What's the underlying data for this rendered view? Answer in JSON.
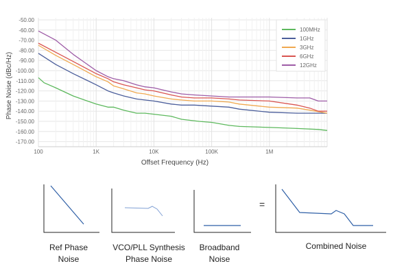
{
  "chart_data": {
    "type": "line",
    "title": "",
    "xlabel": "Offset Frequency (Hz)",
    "ylabel": "Phase Noise (dBc/Hz)",
    "x_scale": "log",
    "xlim": [
      100,
      10000000
    ],
    "ylim": [
      -175,
      -48
    ],
    "x_ticks": [
      100,
      1000,
      10000,
      100000,
      1000000
    ],
    "x_tick_labels": [
      "100",
      "1K",
      "10K",
      "100K",
      "1M"
    ],
    "y_ticks": [
      -50,
      -60,
      -70,
      -80,
      -90,
      -100,
      -110,
      -120,
      -130,
      -140,
      -150,
      -160,
      -170
    ],
    "y_tick_labels": [
      "-50.00",
      "-60.00",
      "-70.00",
      "-80.00",
      "-90.00",
      "-100.00",
      "-110.00",
      "-120.00",
      "-130.00",
      "-140.00",
      "-150.00",
      "-160.00",
      "-170.00"
    ],
    "grid": true,
    "legend_position": "top-right",
    "series": [
      {
        "name": "100MHz",
        "color": "#5cb85c",
        "x": [
          100,
          125,
          200,
          400,
          1000,
          1600,
          2000,
          3000,
          5000,
          7000,
          10000,
          20000,
          30000,
          60000,
          100000,
          200000,
          300000,
          1000000,
          3000000,
          7000000,
          10000000
        ],
        "y": [
          -107,
          -112,
          -117,
          -125,
          -133,
          -136,
          -136,
          -139,
          -142,
          -142,
          -143,
          -145,
          -148,
          -150,
          -151,
          -154,
          -155,
          -156,
          -157,
          -158,
          -159
        ]
      },
      {
        "name": "1GHz",
        "color": "#4a5d9a",
        "x": [
          100,
          200,
          400,
          1000,
          1600,
          2000,
          3000,
          5000,
          7000,
          10000,
          20000,
          30000,
          50000,
          100000,
          200000,
          300000,
          1000000,
          3000000,
          10000000
        ],
        "y": [
          -83,
          -94,
          -103,
          -114,
          -120,
          -122,
          -125,
          -128,
          -129,
          -130,
          -133,
          -134,
          -134,
          -135,
          -136,
          -138,
          -141,
          -142,
          -142
        ]
      },
      {
        "name": "3GHz",
        "color": "#f0a84e",
        "x": [
          100,
          200,
          400,
          1000,
          1600,
          2000,
          3000,
          5000,
          7000,
          10000,
          20000,
          30000,
          50000,
          100000,
          200000,
          300000,
          1000000,
          3000000,
          5000000,
          10000000
        ],
        "y": [
          -75,
          -85,
          -94,
          -106,
          -111,
          -115,
          -118,
          -122,
          -123,
          -125,
          -128,
          -129,
          -130,
          -130,
          -131,
          -133,
          -136,
          -137,
          -139,
          -142
        ]
      },
      {
        "name": "6GHz",
        "color": "#d9534f",
        "x": [
          100,
          200,
          400,
          1000,
          1600,
          2000,
          3000,
          5000,
          7000,
          10000,
          20000,
          30000,
          50000,
          100000,
          200000,
          300000,
          1000000,
          3000000,
          5000000,
          7000000,
          10000000
        ],
        "y": [
          -73,
          -82,
          -91,
          -103,
          -108,
          -111,
          -114,
          -117,
          -119,
          -120,
          -124,
          -126,
          -127,
          -127,
          -128,
          -129,
          -130,
          -134,
          -137,
          -140,
          -140
        ]
      },
      {
        "name": "12GHz",
        "color": "#9d5ba6",
        "x": [
          100,
          200,
          400,
          1000,
          1600,
          2000,
          3000,
          5000,
          7000,
          10000,
          20000,
          30000,
          50000,
          100000,
          200000,
          300000,
          1000000,
          3000000,
          5000000,
          7000000,
          10000000
        ],
        "y": [
          -61,
          -70,
          -84,
          -100,
          -106,
          -108,
          -110,
          -114,
          -116,
          -117,
          -121,
          -123,
          -124,
          -125,
          -126,
          -126,
          -126,
          -127,
          -127,
          -130,
          -130
        ]
      }
    ]
  },
  "sketches": [
    {
      "name": "ref-phase-noise",
      "caption": "Ref Phase Noise"
    },
    {
      "name": "vco-pll-synthesis-phase-noise",
      "caption": "VCO/PLL Synthesis Phase Noise"
    },
    {
      "name": "broadband-noise",
      "caption": "Broadband Noise"
    },
    {
      "name": "combined-noise",
      "caption": "Combined Noise"
    }
  ],
  "operator": "=",
  "sketch_line_color": "#2e5fa6"
}
